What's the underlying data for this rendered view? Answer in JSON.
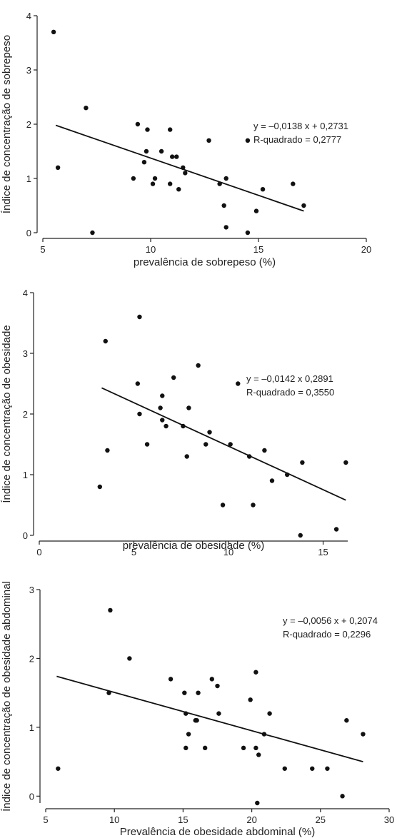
{
  "chart_data": [
    {
      "type": "scatter",
      "xlabel": "prevalência de sobrepeso (%)",
      "ylabel": "Índice de concentração de sobrepeso",
      "xlim": [
        5,
        20
      ],
      "ylim": [
        0,
        4
      ],
      "xticks": [
        "5",
        "10",
        "15",
        "20"
      ],
      "yticks": [
        "0",
        "1",
        "2",
        "3",
        "4"
      ],
      "annotations": [
        "y = –0,0138 x + 0,2731",
        "R-quadrado = 0,2777"
      ],
      "trend_line": {
        "x": [
          5.6,
          17.1
        ],
        "y": [
          1.98,
          0.4
        ]
      },
      "points": [
        {
          "x": 5.5,
          "y": 3.7
        },
        {
          "x": 5.7,
          "y": 1.2
        },
        {
          "x": 7.0,
          "y": 2.3
        },
        {
          "x": 7.3,
          "y": 0.0
        },
        {
          "x": 9.2,
          "y": 1.0
        },
        {
          "x": 9.4,
          "y": 2.0
        },
        {
          "x": 9.7,
          "y": 1.3
        },
        {
          "x": 9.8,
          "y": 1.5
        },
        {
          "x": 9.85,
          "y": 1.9
        },
        {
          "x": 10.1,
          "y": 0.9
        },
        {
          "x": 10.2,
          "y": 1.0
        },
        {
          "x": 10.5,
          "y": 1.5
        },
        {
          "x": 10.9,
          "y": 1.9
        },
        {
          "x": 10.9,
          "y": 0.9
        },
        {
          "x": 11.0,
          "y": 1.4
        },
        {
          "x": 11.2,
          "y": 1.4
        },
        {
          "x": 11.3,
          "y": 0.8
        },
        {
          "x": 11.5,
          "y": 1.2
        },
        {
          "x": 11.6,
          "y": 1.1
        },
        {
          "x": 12.7,
          "y": 1.7
        },
        {
          "x": 13.2,
          "y": 0.9
        },
        {
          "x": 13.4,
          "y": 0.5
        },
        {
          "x": 13.5,
          "y": 1.0
        },
        {
          "x": 13.5,
          "y": 0.1
        },
        {
          "x": 14.5,
          "y": 1.7
        },
        {
          "x": 14.5,
          "y": 0.0
        },
        {
          "x": 14.9,
          "y": 0.4
        },
        {
          "x": 15.2,
          "y": 0.8
        },
        {
          "x": 16.6,
          "y": 0.9
        },
        {
          "x": 17.1,
          "y": 0.5
        }
      ]
    },
    {
      "type": "scatter",
      "xlabel": "prevalência de obesidade (%)",
      "ylabel": "Índice de concentração de obesidade",
      "xlim": [
        0,
        16.3
      ],
      "ylim": [
        0,
        4
      ],
      "xticks": [
        "0",
        "5",
        "10",
        "15"
      ],
      "yticks": [
        "0",
        "1",
        "2",
        "3",
        "4"
      ],
      "annotations": [
        "y = –0,0142 x 0,2891",
        "R-quadrado = 0,3550"
      ],
      "trend_line": {
        "x": [
          3.3,
          16.2
        ],
        "y": [
          2.43,
          0.58
        ]
      },
      "points": [
        {
          "x": 3.2,
          "y": 0.8
        },
        {
          "x": 3.5,
          "y": 3.2
        },
        {
          "x": 3.6,
          "y": 1.4
        },
        {
          "x": 5.2,
          "y": 2.5
        },
        {
          "x": 5.3,
          "y": 3.6
        },
        {
          "x": 5.3,
          "y": 2.0
        },
        {
          "x": 5.7,
          "y": 1.5
        },
        {
          "x": 6.4,
          "y": 2.1
        },
        {
          "x": 6.5,
          "y": 2.3
        },
        {
          "x": 6.5,
          "y": 1.9
        },
        {
          "x": 6.7,
          "y": 1.8
        },
        {
          "x": 7.1,
          "y": 2.6
        },
        {
          "x": 7.6,
          "y": 1.8
        },
        {
          "x": 7.8,
          "y": 1.3
        },
        {
          "x": 7.9,
          "y": 2.1
        },
        {
          "x": 8.4,
          "y": 2.8
        },
        {
          "x": 8.8,
          "y": 1.5
        },
        {
          "x": 9.0,
          "y": 1.7
        },
        {
          "x": 9.7,
          "y": 0.5
        },
        {
          "x": 10.1,
          "y": 1.5
        },
        {
          "x": 10.5,
          "y": 2.5
        },
        {
          "x": 11.1,
          "y": 1.3
        },
        {
          "x": 11.3,
          "y": 0.5
        },
        {
          "x": 11.9,
          "y": 1.4
        },
        {
          "x": 12.3,
          "y": 0.9
        },
        {
          "x": 13.1,
          "y": 1.0
        },
        {
          "x": 13.8,
          "y": 0.0
        },
        {
          "x": 13.9,
          "y": 1.2
        },
        {
          "x": 15.7,
          "y": 0.1
        },
        {
          "x": 16.2,
          "y": 1.2
        }
      ]
    },
    {
      "type": "scatter",
      "xlabel": "Prevalência de obesidade abdominal (%)",
      "ylabel": "Índice de concentração de obesidade abdominal",
      "xlim": [
        5,
        30
      ],
      "ylim": [
        -0.1,
        3
      ],
      "xticks": [
        "5",
        "10",
        "15",
        "20",
        "25",
        "30"
      ],
      "yticks": [
        "0",
        "1",
        "2",
        "3"
      ],
      "annotations": [
        "y = –0,0056 x + 0,2074",
        "R-quadrado = 0,2296"
      ],
      "trend_line": {
        "x": [
          5.8,
          28.1
        ],
        "y": [
          1.74,
          0.5
        ]
      },
      "points": [
        {
          "x": 5.9,
          "y": 0.4
        },
        {
          "x": 9.6,
          "y": 1.5
        },
        {
          "x": 9.7,
          "y": 2.7
        },
        {
          "x": 11.1,
          "y": 2.0
        },
        {
          "x": 14.1,
          "y": 1.7
        },
        {
          "x": 15.1,
          "y": 1.5
        },
        {
          "x": 15.2,
          "y": 1.2
        },
        {
          "x": 15.2,
          "y": 0.7
        },
        {
          "x": 15.4,
          "y": 0.9
        },
        {
          "x": 15.9,
          "y": 1.1
        },
        {
          "x": 16.0,
          "y": 1.1
        },
        {
          "x": 16.1,
          "y": 1.5
        },
        {
          "x": 16.6,
          "y": 0.7
        },
        {
          "x": 17.1,
          "y": 1.7
        },
        {
          "x": 17.5,
          "y": 1.6
        },
        {
          "x": 17.6,
          "y": 1.2
        },
        {
          "x": 19.4,
          "y": 0.7
        },
        {
          "x": 19.9,
          "y": 1.4
        },
        {
          "x": 20.3,
          "y": 1.8
        },
        {
          "x": 20.3,
          "y": 0.7
        },
        {
          "x": 20.5,
          "y": 0.6
        },
        {
          "x": 20.4,
          "y": -0.1
        },
        {
          "x": 20.9,
          "y": 0.9
        },
        {
          "x": 21.3,
          "y": 1.2
        },
        {
          "x": 22.4,
          "y": 0.4
        },
        {
          "x": 24.4,
          "y": 0.4
        },
        {
          "x": 25.5,
          "y": 0.4
        },
        {
          "x": 26.6,
          "y": 0.0
        },
        {
          "x": 26.9,
          "y": 1.1
        },
        {
          "x": 28.1,
          "y": 0.9
        }
      ]
    }
  ]
}
